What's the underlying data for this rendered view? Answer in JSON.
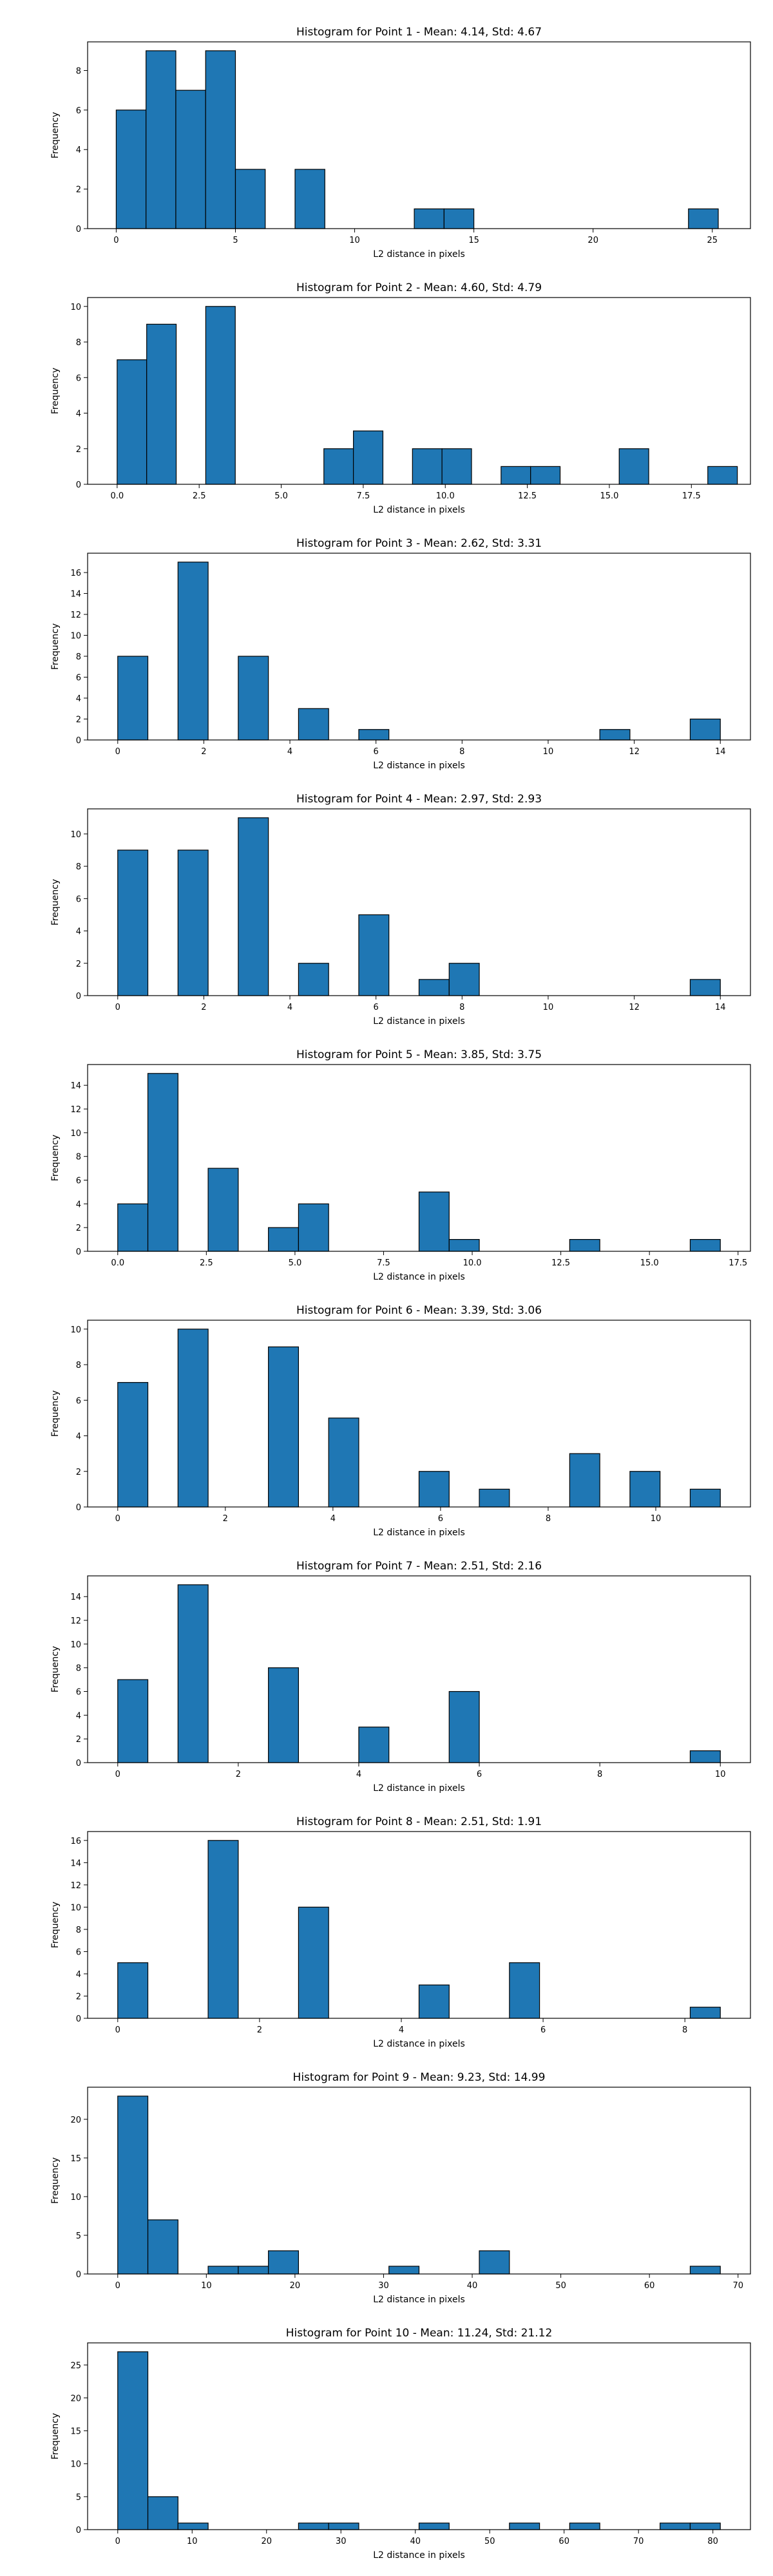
{
  "chart_data": [
    {
      "type": "bar",
      "title": "Histogram for Point 1 - Mean: 4.14, Std: 4.67",
      "xlabel": "L2 distance in pixels",
      "ylabel": "Frequency",
      "bin_width": 1.25,
      "xlim": [
        -1.2,
        26.6
      ],
      "ylim": [
        0,
        9.45
      ],
      "xticks": [
        0,
        5,
        10,
        15,
        20,
        25
      ],
      "yticks": [
        0,
        2,
        4,
        6,
        8
      ],
      "bar_color": "#1f77b4",
      "edge_color": "#000000",
      "bins": [
        {
          "start": 0.0,
          "count": 6
        },
        {
          "start": 1.25,
          "count": 9
        },
        {
          "start": 2.5,
          "count": 7
        },
        {
          "start": 3.75,
          "count": 9
        },
        {
          "start": 5.0,
          "count": 3
        },
        {
          "start": 7.5,
          "count": 3
        },
        {
          "start": 12.5,
          "count": 1
        },
        {
          "start": 13.75,
          "count": 1
        },
        {
          "start": 24.0,
          "count": 1
        }
      ]
    },
    {
      "type": "bar",
      "title": "Histogram for Point 2 - Mean: 4.60, Std: 4.79",
      "xlabel": "L2 distance in pixels",
      "ylabel": "Frequency",
      "bin_width": 0.9,
      "xlim": [
        -0.9,
        19.3
      ],
      "ylim": [
        0,
        10.5
      ],
      "xticks": [
        0.0,
        2.5,
        5.0,
        7.5,
        10.0,
        12.5,
        15.0,
        17.5
      ],
      "yticks": [
        0,
        2,
        4,
        6,
        8,
        10
      ],
      "bar_color": "#1f77b4",
      "edge_color": "#000000",
      "bins": [
        {
          "start": 0.0,
          "count": 7
        },
        {
          "start": 0.9,
          "count": 9
        },
        {
          "start": 2.7,
          "count": 10
        },
        {
          "start": 6.3,
          "count": 2
        },
        {
          "start": 7.2,
          "count": 3
        },
        {
          "start": 9.0,
          "count": 2
        },
        {
          "start": 9.9,
          "count": 2
        },
        {
          "start": 11.7,
          "count": 1
        },
        {
          "start": 12.6,
          "count": 1
        },
        {
          "start": 15.3,
          "count": 2
        },
        {
          "start": 18.0,
          "count": 1
        }
      ]
    },
    {
      "type": "bar",
      "title": "Histogram for Point 3 - Mean: 2.62, Std: 3.31",
      "xlabel": "L2 distance in pixels",
      "ylabel": "Frequency",
      "bin_width": 0.7,
      "xlim": [
        -0.7,
        14.7
      ],
      "ylim": [
        0,
        17.85
      ],
      "xticks": [
        0,
        2,
        4,
        6,
        8,
        10,
        12,
        14
      ],
      "yticks": [
        0,
        2,
        4,
        6,
        8,
        10,
        12,
        14,
        16
      ],
      "bar_color": "#1f77b4",
      "edge_color": "#000000",
      "bins": [
        {
          "start": 0.0,
          "count": 8
        },
        {
          "start": 1.4,
          "count": 17
        },
        {
          "start": 2.8,
          "count": 8
        },
        {
          "start": 4.2,
          "count": 3
        },
        {
          "start": 5.6,
          "count": 1
        },
        {
          "start": 11.2,
          "count": 1
        },
        {
          "start": 13.3,
          "count": 2
        }
      ]
    },
    {
      "type": "bar",
      "title": "Histogram for Point 4 - Mean: 2.97, Std: 2.93",
      "xlabel": "L2 distance in pixels",
      "ylabel": "Frequency",
      "bin_width": 0.7,
      "xlim": [
        -0.7,
        14.7
      ],
      "ylim": [
        0,
        11.55
      ],
      "xticks": [
        0,
        2,
        4,
        6,
        8,
        10,
        12,
        14
      ],
      "yticks": [
        0,
        2,
        4,
        6,
        8,
        10
      ],
      "bar_color": "#1f77b4",
      "edge_color": "#000000",
      "bins": [
        {
          "start": 0.0,
          "count": 9
        },
        {
          "start": 1.4,
          "count": 9
        },
        {
          "start": 2.8,
          "count": 11
        },
        {
          "start": 4.2,
          "count": 2
        },
        {
          "start": 5.6,
          "count": 5
        },
        {
          "start": 7.0,
          "count": 1
        },
        {
          "start": 7.7,
          "count": 2
        },
        {
          "start": 13.3,
          "count": 1
        }
      ]
    },
    {
      "type": "bar",
      "title": "Histogram for Point 5 - Mean: 3.85, Std: 3.75",
      "xlabel": "L2 distance in pixels",
      "ylabel": "Frequency",
      "bin_width": 0.85,
      "xlim": [
        -0.85,
        17.85
      ],
      "ylim": [
        0,
        15.75
      ],
      "xticks": [
        0.0,
        2.5,
        5.0,
        7.5,
        10.0,
        12.5,
        15.0,
        17.5
      ],
      "yticks": [
        0,
        2,
        4,
        6,
        8,
        10,
        12,
        14
      ],
      "bar_color": "#1f77b4",
      "edge_color": "#000000",
      "bins": [
        {
          "start": 0.0,
          "count": 4
        },
        {
          "start": 0.85,
          "count": 15
        },
        {
          "start": 2.55,
          "count": 7
        },
        {
          "start": 4.25,
          "count": 2
        },
        {
          "start": 5.1,
          "count": 4
        },
        {
          "start": 8.5,
          "count": 5
        },
        {
          "start": 9.35,
          "count": 1
        },
        {
          "start": 12.75,
          "count": 1
        },
        {
          "start": 16.15,
          "count": 1
        }
      ]
    },
    {
      "type": "bar",
      "title": "Histogram for Point 6 - Mean: 3.39, Std: 3.06",
      "xlabel": "L2 distance in pixels",
      "ylabel": "Frequency",
      "bin_width": 0.56,
      "xlim": [
        -0.56,
        11.76
      ],
      "ylim": [
        0,
        10.5
      ],
      "xticks": [
        0,
        2,
        4,
        6,
        8,
        10
      ],
      "yticks": [
        0,
        2,
        4,
        6,
        8,
        10
      ],
      "bar_color": "#1f77b4",
      "edge_color": "#000000",
      "bins": [
        {
          "start": 0.0,
          "count": 7
        },
        {
          "start": 1.12,
          "count": 10
        },
        {
          "start": 2.8,
          "count": 9
        },
        {
          "start": 3.92,
          "count": 5
        },
        {
          "start": 5.6,
          "count": 2
        },
        {
          "start": 6.72,
          "count": 1
        },
        {
          "start": 8.4,
          "count": 3
        },
        {
          "start": 9.52,
          "count": 2
        },
        {
          "start": 10.64,
          "count": 1
        }
      ]
    },
    {
      "type": "bar",
      "title": "Histogram for Point 7 - Mean: 2.51, Std: 2.16",
      "xlabel": "L2 distance in pixels",
      "ylabel": "Frequency",
      "bin_width": 0.5,
      "xlim": [
        -0.5,
        10.5
      ],
      "ylim": [
        0,
        15.75
      ],
      "xticks": [
        0,
        2,
        4,
        6,
        8,
        10
      ],
      "yticks": [
        0,
        2,
        4,
        6,
        8,
        10,
        12,
        14
      ],
      "bar_color": "#1f77b4",
      "edge_color": "#000000",
      "bins": [
        {
          "start": 0.0,
          "count": 7
        },
        {
          "start": 1.0,
          "count": 15
        },
        {
          "start": 2.5,
          "count": 8
        },
        {
          "start": 4.0,
          "count": 3
        },
        {
          "start": 5.5,
          "count": 6
        },
        {
          "start": 9.5,
          "count": 1
        }
      ]
    },
    {
      "type": "bar",
      "title": "Histogram for Point 8 - Mean: 2.51, Std: 1.91",
      "xlabel": "L2 distance in pixels",
      "ylabel": "Frequency",
      "bin_width": 0.425,
      "xlim": [
        -0.425,
        8.925
      ],
      "ylim": [
        0,
        16.8
      ],
      "xticks": [
        0,
        2,
        4,
        6,
        8
      ],
      "yticks": [
        0,
        2,
        4,
        6,
        8,
        10,
        12,
        14,
        16
      ],
      "bar_color": "#1f77b4",
      "edge_color": "#000000",
      "bins": [
        {
          "start": 0.0,
          "count": 5
        },
        {
          "start": 1.275,
          "count": 16
        },
        {
          "start": 2.55,
          "count": 10
        },
        {
          "start": 4.25,
          "count": 3
        },
        {
          "start": 5.525,
          "count": 5
        },
        {
          "start": 8.075,
          "count": 1
        }
      ]
    },
    {
      "type": "bar",
      "title": "Histogram for Point 9 - Mean: 9.23, Std: 14.99",
      "xlabel": "L2 distance in pixels",
      "ylabel": "Frequency",
      "bin_width": 3.4,
      "xlim": [
        -3.4,
        71.4
      ],
      "ylim": [
        0,
        24.15
      ],
      "xticks": [
        0,
        10,
        20,
        30,
        40,
        50,
        60,
        70
      ],
      "yticks": [
        0,
        5,
        10,
        15,
        20
      ],
      "bar_color": "#1f77b4",
      "edge_color": "#000000",
      "bins": [
        {
          "start": 0.0,
          "count": 23
        },
        {
          "start": 3.4,
          "count": 7
        },
        {
          "start": 10.2,
          "count": 1
        },
        {
          "start": 13.6,
          "count": 1
        },
        {
          "start": 17.0,
          "count": 3
        },
        {
          "start": 30.6,
          "count": 1
        },
        {
          "start": 40.8,
          "count": 3
        },
        {
          "start": 64.6,
          "count": 1
        }
      ]
    },
    {
      "type": "bar",
      "title": "Histogram for Point 10 - Mean: 11.24, Std: 21.12",
      "xlabel": "L2 distance in pixels",
      "ylabel": "Frequency",
      "bin_width": 4.05,
      "xlim": [
        -4.05,
        85.05
      ],
      "ylim": [
        0,
        28.35
      ],
      "xticks": [
        0,
        10,
        20,
        30,
        40,
        50,
        60,
        70,
        80
      ],
      "yticks": [
        0,
        5,
        10,
        15,
        20,
        25
      ],
      "bar_color": "#1f77b4",
      "edge_color": "#000000",
      "bins": [
        {
          "start": 0.0,
          "count": 27
        },
        {
          "start": 4.05,
          "count": 5
        },
        {
          "start": 8.1,
          "count": 1
        },
        {
          "start": 24.3,
          "count": 1
        },
        {
          "start": 28.35,
          "count": 1
        },
        {
          "start": 40.5,
          "count": 1
        },
        {
          "start": 52.65,
          "count": 1
        },
        {
          "start": 60.75,
          "count": 1
        },
        {
          "start": 72.9,
          "count": 1
        },
        {
          "start": 76.95,
          "count": 1
        }
      ]
    }
  ]
}
